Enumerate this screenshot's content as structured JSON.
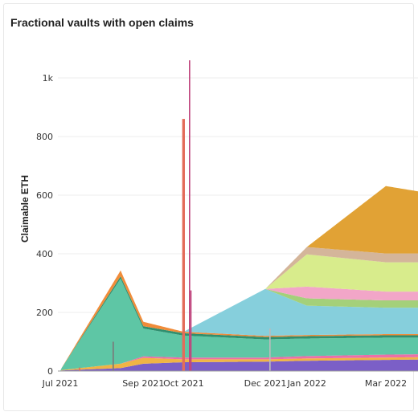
{
  "chart_data": {
    "type": "area",
    "title": "Fractional vaults with open claims",
    "xlabel": "",
    "ylabel": "Claimable ETH",
    "ylim": [
      0,
      1100
    ],
    "yticks": [
      0,
      200,
      400,
      600,
      800,
      1000
    ],
    "ytick_labels": [
      "0",
      "200",
      "400",
      "600",
      "800",
      "1k"
    ],
    "x_range": [
      "2021-06-25",
      "2022-04-10"
    ],
    "xticks": [
      {
        "date": "2021-07-01",
        "label": "Jul 2021"
      },
      {
        "date": "2021-09-01",
        "label": "Sep 2021"
      },
      {
        "date": "2021-10-01",
        "label": "Oct 2021"
      },
      {
        "date": "2021-12-01",
        "label": "Dec 2021"
      },
      {
        "date": "2022-01-01",
        "label": "Jan 2022"
      },
      {
        "date": "2022-03-01",
        "label": "Mar 2022"
      }
    ],
    "grid": true,
    "legend": "none",
    "series": [
      {
        "color": "#7b5fc7",
        "values": [
          [
            "2021-07-01",
            2
          ],
          [
            "2021-08-15",
            10
          ],
          [
            "2021-09-01",
            25
          ],
          [
            "2021-10-01",
            30
          ],
          [
            "2021-12-01",
            32
          ],
          [
            "2022-01-01",
            35
          ],
          [
            "2022-03-01",
            38
          ],
          [
            "2022-04-10",
            40
          ]
        ]
      },
      {
        "color": "#f0b445",
        "values": [
          [
            "2021-07-01",
            1
          ],
          [
            "2021-08-15",
            15
          ],
          [
            "2021-09-01",
            20
          ],
          [
            "2021-10-01",
            10
          ],
          [
            "2021-12-01",
            8
          ],
          [
            "2022-01-01",
            8
          ],
          [
            "2022-03-01",
            8
          ],
          [
            "2022-04-10",
            8
          ]
        ]
      },
      {
        "color": "#ec6fa8",
        "values": [
          [
            "2021-07-01",
            0
          ],
          [
            "2021-08-15",
            0
          ],
          [
            "2021-09-01",
            5
          ],
          [
            "2021-10-01",
            6
          ],
          [
            "2021-12-01",
            6
          ],
          [
            "2022-01-01",
            8
          ],
          [
            "2022-03-01",
            10
          ],
          [
            "2022-04-10",
            10
          ]
        ]
      },
      {
        "color": "#5ec6a5",
        "values": [
          [
            "2021-07-01",
            0
          ],
          [
            "2021-08-15",
            290
          ],
          [
            "2021-09-01",
            95
          ],
          [
            "2021-10-01",
            75
          ],
          [
            "2021-12-01",
            62
          ],
          [
            "2022-01-01",
            60
          ],
          [
            "2022-03-01",
            58
          ],
          [
            "2022-04-10",
            56
          ]
        ]
      },
      {
        "color": "#2f8f6f",
        "values": [
          [
            "2021-07-01",
            0
          ],
          [
            "2021-08-15",
            8
          ],
          [
            "2021-09-01",
            8
          ],
          [
            "2021-10-01",
            8
          ],
          [
            "2021-12-01",
            8
          ],
          [
            "2022-01-01",
            8
          ],
          [
            "2022-03-01",
            8
          ],
          [
            "2022-04-10",
            8
          ]
        ]
      },
      {
        "color": "#f08c3a",
        "values": [
          [
            "2021-07-01",
            0
          ],
          [
            "2021-08-15",
            20
          ],
          [
            "2021-09-01",
            15
          ],
          [
            "2021-10-01",
            5
          ],
          [
            "2021-12-01",
            4
          ],
          [
            "2022-01-01",
            4
          ],
          [
            "2022-03-01",
            4
          ],
          [
            "2022-04-10",
            4
          ]
        ]
      },
      {
        "color": "#86cfdc",
        "values": [
          [
            "2021-07-01",
            0
          ],
          [
            "2021-08-15",
            0
          ],
          [
            "2021-09-01",
            0
          ],
          [
            "2021-10-01",
            0
          ],
          [
            "2021-12-01",
            160
          ],
          [
            "2022-01-01",
            100
          ],
          [
            "2022-03-01",
            90
          ],
          [
            "2022-04-10",
            90
          ]
        ]
      },
      {
        "color": "#a4d07a",
        "values": [
          [
            "2021-07-01",
            0
          ],
          [
            "2021-08-15",
            0
          ],
          [
            "2021-09-01",
            0
          ],
          [
            "2021-10-01",
            0
          ],
          [
            "2021-12-01",
            0
          ],
          [
            "2022-01-01",
            25
          ],
          [
            "2022-03-01",
            25
          ],
          [
            "2022-04-10",
            25
          ]
        ]
      },
      {
        "color": "#f2a6c8",
        "values": [
          [
            "2021-07-01",
            0
          ],
          [
            "2021-08-15",
            0
          ],
          [
            "2021-09-01",
            0
          ],
          [
            "2021-10-01",
            0
          ],
          [
            "2021-12-01",
            0
          ],
          [
            "2022-01-01",
            40
          ],
          [
            "2022-03-01",
            30
          ],
          [
            "2022-04-10",
            30
          ]
        ]
      },
      {
        "color": "#d8ec8c",
        "values": [
          [
            "2021-07-01",
            0
          ],
          [
            "2021-08-15",
            0
          ],
          [
            "2021-09-01",
            0
          ],
          [
            "2021-10-01",
            0
          ],
          [
            "2021-12-01",
            0
          ],
          [
            "2022-01-01",
            110
          ],
          [
            "2022-03-01",
            100
          ],
          [
            "2022-04-10",
            100
          ]
        ]
      },
      {
        "color": "#d4b59a",
        "values": [
          [
            "2021-07-01",
            0
          ],
          [
            "2021-08-15",
            0
          ],
          [
            "2021-09-01",
            0
          ],
          [
            "2021-10-01",
            0
          ],
          [
            "2021-12-01",
            0
          ],
          [
            "2022-01-01",
            25
          ],
          [
            "2022-03-01",
            30
          ],
          [
            "2022-04-10",
            30
          ]
        ]
      },
      {
        "color": "#e1a235",
        "values": [
          [
            "2021-07-01",
            0
          ],
          [
            "2021-08-15",
            0
          ],
          [
            "2021-09-01",
            0
          ],
          [
            "2021-10-01",
            0
          ],
          [
            "2021-12-01",
            0
          ],
          [
            "2022-01-01",
            0
          ],
          [
            "2022-03-01",
            230
          ],
          [
            "2022-04-10",
            200
          ]
        ]
      }
    ],
    "spikes": [
      {
        "color": "#e36c5a",
        "x0": "2021-09-30",
        "x1": "2021-10-02",
        "y": 860
      },
      {
        "color": "#c0467e",
        "x0": "2021-10-05",
        "x1": "2021-10-06",
        "y": 1060
      },
      {
        "color": "#c0467e",
        "x0": "2021-10-06",
        "x1": "2021-10-07",
        "y": 275
      },
      {
        "color": "#7a7a7a",
        "x0": "2021-08-09",
        "x1": "2021-08-10",
        "y": 100
      },
      {
        "color": "#e36c5a",
        "x0": "2021-07-15",
        "x1": "2021-07-16",
        "y": 12
      },
      {
        "color": "#bbbbbb",
        "x0": "2021-12-04",
        "x1": "2021-12-05",
        "y": 145
      }
    ]
  }
}
